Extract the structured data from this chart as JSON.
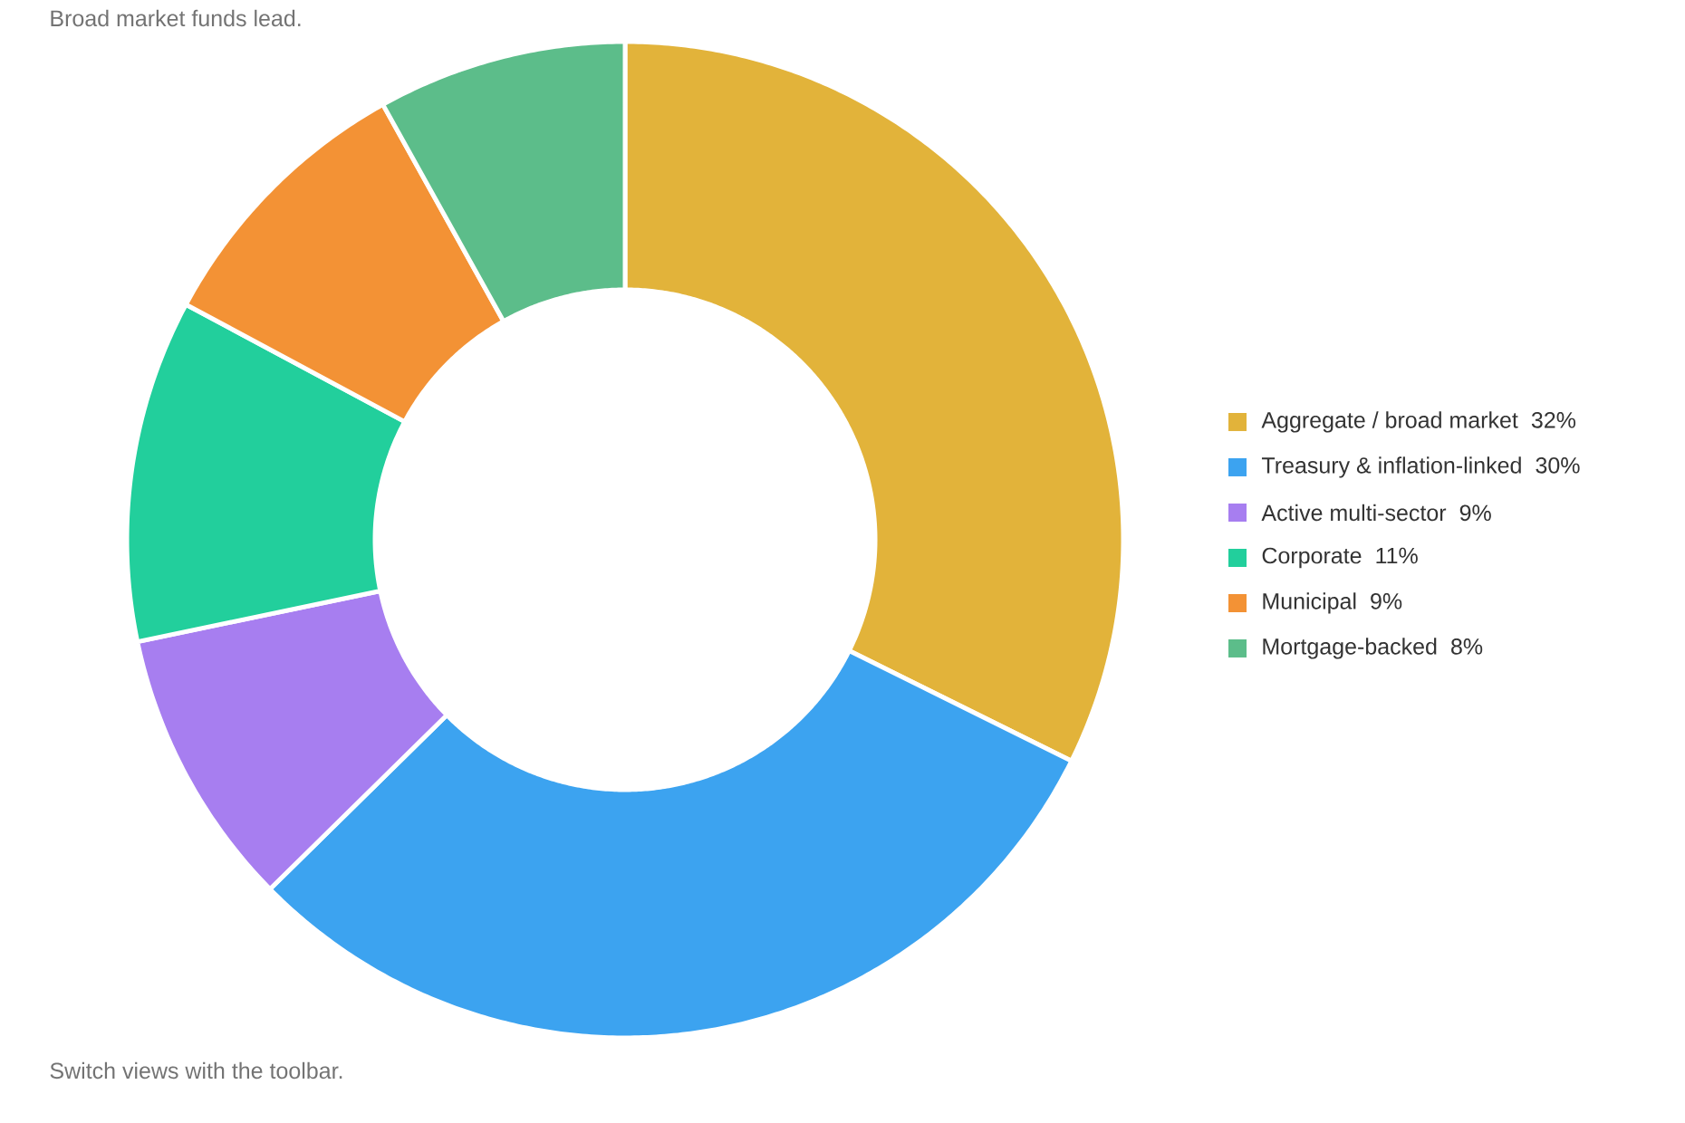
{
  "chart_data": {
    "type": "donut",
    "subtitle": "Broad market funds lead.",
    "categories": [
      "Aggregate / broad market",
      "Treasury & inflation-linked",
      "Active multi-sector",
      "Corporate",
      "Municipal",
      "Mortgage-backed"
    ],
    "values": [
      32,
      30,
      9,
      11,
      9,
      8
    ],
    "value_labels": [
      "32%",
      "30%",
      "9%",
      "11%",
      "9%",
      "8%"
    ],
    "colors": [
      "#e2b33a",
      "#3ca3f0",
      "#a77ef0",
      "#22cf9c",
      "#f39235",
      "#5cbd8a"
    ],
    "legend": "right",
    "annotations": [
      "Switch views with the toolbar."
    ]
  }
}
